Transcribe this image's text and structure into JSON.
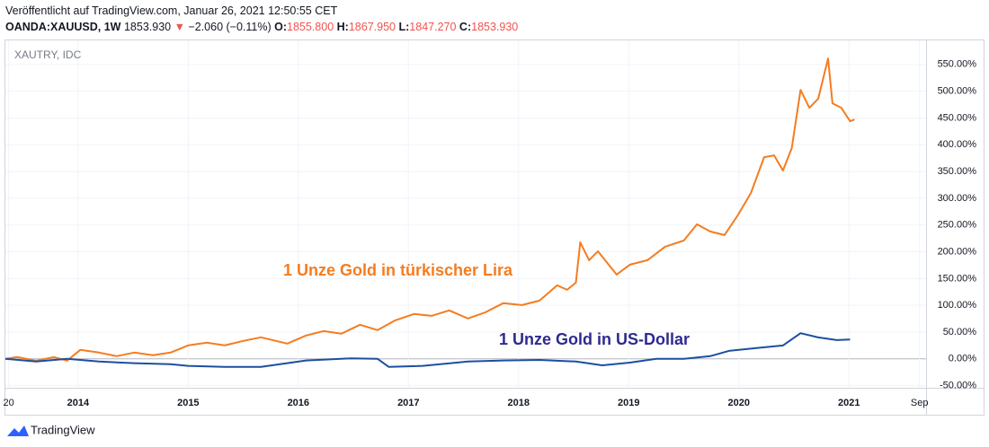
{
  "header": {
    "published": "Veröffentlicht auf TradingView.com, Januar 26, 2021 12:50:55 CET",
    "symbol": "OANDA:XAUUSD, 1W",
    "last": "1853.930",
    "arrow": "▼",
    "change": "−2.060 (−0.11%)",
    "o_label": "O:",
    "o": "1855.800",
    "h_label": "H:",
    "h": "1867.950",
    "l_label": "L:",
    "l": "1847.270",
    "c_label": "C:",
    "c": "1853.930"
  },
  "footer": {
    "brand": "TradingView"
  },
  "chart_data": {
    "type": "line",
    "legend_label": "XAUTRY, IDC",
    "annotations": [
      "1 Unze Gold in türkischer Lira",
      "1 Unze Gold in US-Dollar"
    ],
    "xlim": [
      2013.34,
      2021.7
    ],
    "xticks": [
      {
        "value": 2013.37,
        "label": "20"
      },
      2014,
      2015,
      2016,
      2017,
      2018,
      2019,
      2020,
      2021,
      {
        "value": 2021.64,
        "label": "Sep"
      }
    ],
    "ylim": [
      -54,
      595
    ],
    "yticks": [
      {
        "value": -50,
        "label": "-50.00%"
      },
      {
        "value": 0,
        "label": "0.00%"
      },
      {
        "value": 50,
        "label": "50.00%"
      },
      {
        "value": 100,
        "label": "100.00%"
      },
      {
        "value": 150,
        "label": "150.00%"
      },
      {
        "value": 200,
        "label": "200.00%"
      },
      {
        "value": 250,
        "label": "250.00%"
      },
      {
        "value": 300,
        "label": "300.00%"
      },
      {
        "value": 350,
        "label": "350.00%"
      },
      {
        "value": 400,
        "label": "400.00%"
      },
      {
        "value": 450,
        "label": "450.00%"
      },
      {
        "value": 500,
        "label": "500.00%"
      },
      {
        "value": 550,
        "label": "550.00%"
      }
    ],
    "grid": true,
    "series": [
      {
        "color": "#f57c1f",
        "x": [
          2013.34,
          2013.45,
          2013.62,
          2013.78,
          2013.9,
          2014.02,
          2014.19,
          2014.35,
          2014.51,
          2014.68,
          2014.84,
          2015.0,
          2015.17,
          2015.33,
          2015.5,
          2015.66,
          2015.9,
          2016.07,
          2016.23,
          2016.39,
          2016.56,
          2016.72,
          2016.88,
          2017.05,
          2017.21,
          2017.37,
          2017.54,
          2017.7,
          2017.86,
          2018.03,
          2018.19,
          2018.35,
          2018.44,
          2018.52,
          2018.56,
          2018.64,
          2018.72,
          2018.89,
          2019.01,
          2019.17,
          2019.33,
          2019.5,
          2019.62,
          2019.74,
          2019.87,
          2019.99,
          2020.11,
          2020.23,
          2020.32,
          2020.4,
          2020.48,
          2020.56,
          2020.64,
          2020.72,
          2020.81,
          2020.85,
          2020.93,
          2021.01,
          2021.05
        ],
        "values": [
          0,
          3.4,
          -3.4,
          3.4,
          -3.4,
          16.8,
          11.7,
          5.0,
          11.7,
          6.7,
          11.7,
          25.1,
          30.2,
          25.1,
          33.5,
          40.2,
          28.5,
          43.6,
          51.9,
          46.9,
          63.7,
          53.6,
          72.0,
          83.8,
          80.4,
          90.5,
          75.4,
          87.1,
          103.9,
          100.5,
          108.9,
          137.4,
          129.0,
          142.4,
          217.8,
          184.3,
          201.0,
          157.5,
          175.9,
          184.3,
          209.4,
          221.1,
          251.3,
          237.9,
          231.2,
          268.0,
          309.9,
          376.9,
          380.2,
          351.8,
          393.6,
          502.5,
          469.0,
          485.8,
          561.1,
          477.4,
          469.0,
          443.9,
          447.2
        ]
      },
      {
        "color": "#1c4fa0",
        "x": [
          2013.34,
          2013.62,
          2013.9,
          2014.19,
          2014.51,
          2014.84,
          2015.0,
          2015.33,
          2015.66,
          2016.07,
          2016.48,
          2016.72,
          2016.82,
          2017.13,
          2017.54,
          2017.86,
          2018.19,
          2018.52,
          2018.76,
          2019.01,
          2019.25,
          2019.5,
          2019.74,
          2019.91,
          2020.15,
          2020.4,
          2020.56,
          2020.72,
          2020.89,
          2021.01
        ],
        "values": [
          0,
          -5,
          0,
          -5,
          -8,
          -10,
          -13,
          -15,
          -15,
          -3,
          1,
          0,
          -15,
          -13,
          -5,
          -3,
          -2,
          -5,
          -12,
          -7,
          0,
          0,
          5,
          15,
          20,
          25,
          48,
          40,
          35,
          36
        ]
      }
    ]
  }
}
